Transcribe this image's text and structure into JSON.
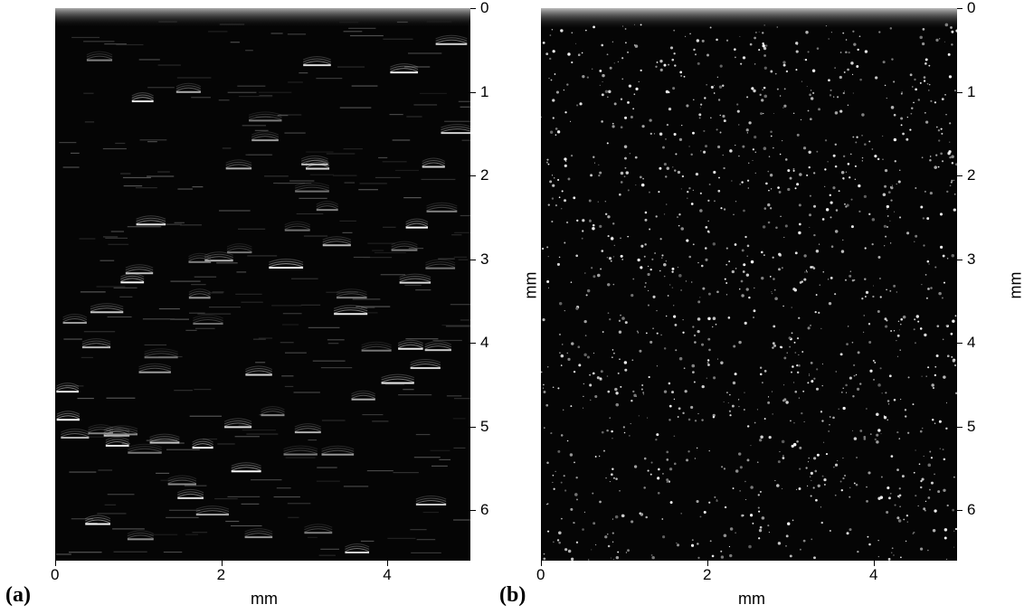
{
  "panels": [
    {
      "id": "a",
      "label": "(a)",
      "xlabel": "mm",
      "ylabel": "mm",
      "x_ticks": [
        "0",
        "2",
        "4"
      ],
      "y_ticks": [
        "0",
        "1",
        "2",
        "3",
        "4",
        "5",
        "6"
      ],
      "x_range_mm": [
        0,
        5
      ],
      "y_range_mm": [
        0,
        6.6
      ],
      "content": "horizontal-streaks"
    },
    {
      "id": "b",
      "label": "(b)",
      "xlabel": "mm",
      "ylabel": "mm",
      "x_ticks": [
        "0",
        "2",
        "4"
      ],
      "y_ticks": [
        "0",
        "1",
        "2",
        "3",
        "4",
        "5",
        "6"
      ],
      "x_range_mm": [
        0,
        5
      ],
      "y_range_mm": [
        0,
        6.6
      ],
      "content": "point-speckles"
    }
  ],
  "colors": {
    "background": "#050505",
    "signal": "#ffffff"
  }
}
